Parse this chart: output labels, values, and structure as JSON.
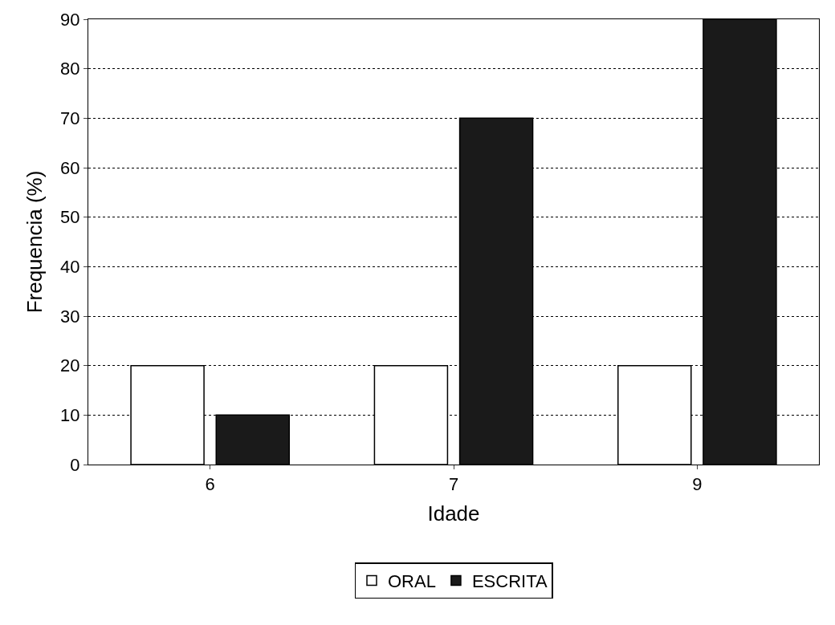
{
  "chart_data": {
    "type": "bar",
    "xlabel": "Idade",
    "ylabel": "Frequencia (%)",
    "categories": [
      "6",
      "7",
      "9"
    ],
    "series": [
      {
        "name": "ORAL",
        "color": "#ffffff",
        "values": [
          20,
          20,
          20
        ]
      },
      {
        "name": "ESCRITA",
        "color": "#1a1a1a",
        "values": [
          10,
          70,
          90
        ]
      }
    ],
    "ylim": [
      0,
      90
    ],
    "yticks": [
      0,
      10,
      20,
      30,
      40,
      50,
      60,
      70,
      80,
      90
    ],
    "grid": "y",
    "legend": "bottom"
  }
}
